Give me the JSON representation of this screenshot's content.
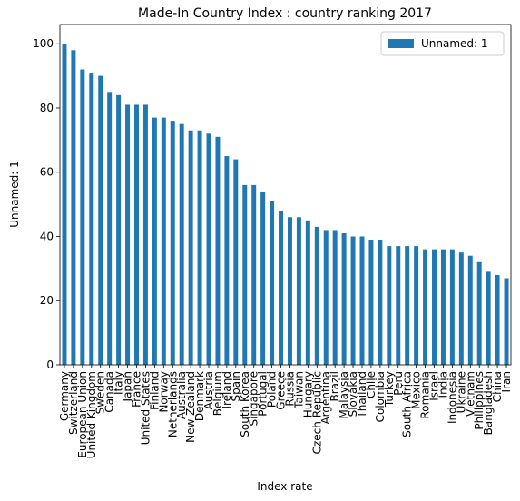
{
  "chart_data": {
    "type": "bar",
    "title": "Made-In Country Index : country ranking 2017",
    "x_label": "Index rate",
    "y_label": "Unnamed: 1",
    "categories": [
      "Germany",
      "Switzerland",
      "European Union",
      "United Kingdom",
      "Sweden",
      "Canada",
      "Italy",
      "Japan",
      "France",
      "United States",
      "Finland",
      "Norway",
      "Netherlands",
      "Australia",
      "New Zealand",
      "Denmark",
      "Austria",
      "Belgium",
      "Ireland",
      "Spain",
      "South Korea",
      "Singapore",
      "Portugal",
      "Poland",
      "Greece",
      "Russia",
      "Taiwan",
      "Hungary",
      "Czech Republic",
      "Argentina",
      "Brazil",
      "Malaysia",
      "Slovakia",
      "Thailand",
      "Chile",
      "Colombia",
      "Turkey",
      "Peru",
      "South Africa",
      "Mexico",
      "Romania",
      "Israel",
      "India",
      "Indonesia",
      "Ukraine",
      "Vietnam",
      "Philippines",
      "Bangladesh",
      "China",
      "Iran"
    ],
    "series": [
      {
        "name": "Unnamed: 1",
        "color": "#1f77b4",
        "values": [
          100,
          98,
          92,
          91,
          90,
          85,
          84,
          81,
          81,
          81,
          77,
          77,
          76,
          75,
          73,
          73,
          72,
          71,
          65,
          64,
          56,
          56,
          54,
          51,
          48,
          46,
          46,
          45,
          43,
          42,
          42,
          41,
          40,
          40,
          39,
          39,
          37,
          37,
          37,
          37,
          36,
          36,
          36,
          36,
          35,
          34,
          32,
          29,
          28,
          27
        ]
      }
    ],
    "ylim": [
      0,
      106
    ],
    "yticks": [
      0,
      20,
      40,
      60,
      80,
      100
    ],
    "legend": "upper right"
  }
}
